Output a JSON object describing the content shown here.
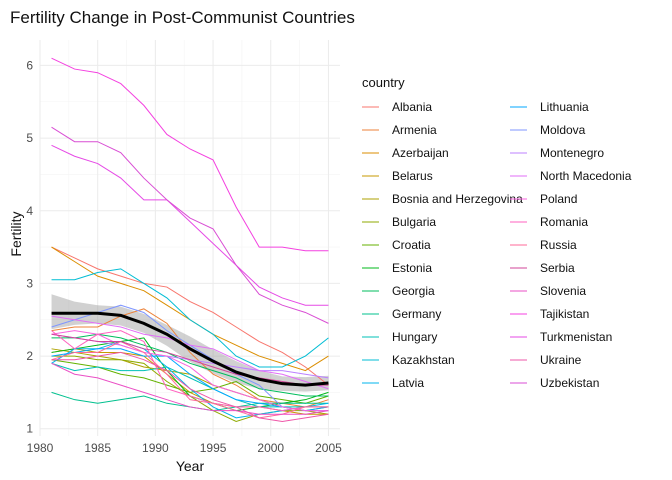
{
  "chart_data": {
    "type": "line",
    "title": "Fertility Change in Post-Communist Countries",
    "xlabel": "Year",
    "ylabel": "Fertility",
    "xlim": [
      1980,
      2006
    ],
    "ylim": [
      0.9,
      6.35
    ],
    "x_ticks": [
      1980,
      1985,
      1990,
      1995,
      2000,
      2005
    ],
    "y_ticks": [
      1,
      2,
      3,
      4,
      5,
      6
    ],
    "grid": true,
    "legend_title": "country",
    "legend_placement": "right",
    "x": [
      1981,
      1983,
      1985,
      1987,
      1989,
      1991,
      1993,
      1995,
      1997,
      1999,
      2001,
      2003,
      2005
    ],
    "series": [
      {
        "name": "Albania",
        "color": "#F8766D",
        "values": [
          3.5,
          3.35,
          3.2,
          3.1,
          3.0,
          2.95,
          2.75,
          2.6,
          2.4,
          2.2,
          2.05,
          1.85,
          1.6
        ]
      },
      {
        "name": "Armenia",
        "color": "#EC8239",
        "values": [
          2.35,
          2.4,
          2.4,
          2.55,
          2.65,
          2.45,
          2.05,
          1.75,
          1.6,
          1.4,
          1.35,
          1.3,
          1.4
        ]
      },
      {
        "name": "Azerbaijan",
        "color": "#DB8E00",
        "values": [
          3.5,
          3.3,
          3.1,
          3.0,
          2.9,
          2.7,
          2.5,
          2.3,
          2.15,
          2.0,
          1.9,
          1.8,
          2.0
        ]
      },
      {
        "name": "Belarus",
        "color": "#C79800",
        "values": [
          2.05,
          2.1,
          2.05,
          2.05,
          2.0,
          1.75,
          1.5,
          1.35,
          1.3,
          1.3,
          1.25,
          1.2,
          1.2
        ]
      },
      {
        "name": "Bosnia and Herzegovina",
        "color": "#AEA200",
        "values": [
          2.1,
          2.05,
          2.0,
          1.95,
          1.85,
          1.8,
          1.75,
          1.6,
          1.5,
          1.4,
          1.3,
          1.25,
          1.2
        ]
      },
      {
        "name": "Bulgaria",
        "color": "#8FAA00",
        "values": [
          2.0,
          2.0,
          1.95,
          1.95,
          1.9,
          1.65,
          1.45,
          1.25,
          1.1,
          1.2,
          1.25,
          1.25,
          1.3
        ]
      },
      {
        "name": "Croatia",
        "color": "#64B200",
        "values": [
          1.95,
          1.9,
          1.85,
          1.75,
          1.7,
          1.6,
          1.5,
          1.55,
          1.65,
          1.45,
          1.4,
          1.35,
          1.45
        ]
      },
      {
        "name": "Estonia",
        "color": "#00B81B",
        "values": [
          2.05,
          2.1,
          2.15,
          2.2,
          2.25,
          1.8,
          1.45,
          1.35,
          1.25,
          1.3,
          1.35,
          1.4,
          1.5
        ]
      },
      {
        "name": "Georgia",
        "color": "#00BD5C",
        "values": [
          2.25,
          2.25,
          2.3,
          2.25,
          2.15,
          2.05,
          1.9,
          1.8,
          1.7,
          1.55,
          1.5,
          1.45,
          1.45
        ]
      },
      {
        "name": "Germany",
        "color": "#00C08E",
        "values": [
          1.5,
          1.4,
          1.35,
          1.4,
          1.45,
          1.35,
          1.3,
          1.25,
          1.3,
          1.35,
          1.35,
          1.35,
          1.35
        ]
      },
      {
        "name": "Hungary",
        "color": "#00C1B7",
        "values": [
          1.9,
          1.8,
          1.85,
          1.8,
          1.8,
          1.85,
          1.7,
          1.55,
          1.4,
          1.3,
          1.3,
          1.3,
          1.3
        ]
      },
      {
        "name": "Kazakhstan",
        "color": "#00BDD4",
        "values": [
          3.05,
          3.05,
          3.15,
          3.2,
          3.0,
          2.8,
          2.5,
          2.3,
          2.0,
          1.85,
          1.85,
          2.0,
          2.25
        ]
      },
      {
        "name": "Latvia",
        "color": "#00B5EE",
        "values": [
          1.9,
          2.1,
          2.1,
          2.2,
          2.1,
          1.85,
          1.55,
          1.3,
          1.15,
          1.2,
          1.25,
          1.3,
          1.35
        ]
      },
      {
        "name": "Lithuania",
        "color": "#00A7FF",
        "values": [
          2.0,
          2.05,
          2.1,
          2.1,
          2.0,
          2.0,
          1.75,
          1.55,
          1.4,
          1.35,
          1.3,
          1.25,
          1.3
        ]
      },
      {
        "name": "Moldova",
        "color": "#7F96FF",
        "values": [
          2.4,
          2.5,
          2.6,
          2.7,
          2.6,
          2.35,
          2.15,
          1.95,
          1.75,
          1.6,
          1.3,
          1.25,
          1.25
        ]
      },
      {
        "name": "Montenegro",
        "color": "#BC81FF",
        "values": [
          2.3,
          2.25,
          2.2,
          2.15,
          2.05,
          2.0,
          1.95,
          1.9,
          1.85,
          1.8,
          1.8,
          1.75,
          1.7
        ]
      },
      {
        "name": "North Macedonia",
        "color": "#E26EF7",
        "values": [
          2.55,
          2.5,
          2.45,
          2.4,
          2.3,
          2.25,
          2.15,
          2.1,
          1.95,
          1.8,
          1.75,
          1.65,
          1.55
        ]
      },
      {
        "name": "Poland",
        "color": "#F863DF",
        "values": [
          2.3,
          2.35,
          2.3,
          2.15,
          2.05,
          2.0,
          1.85,
          1.6,
          1.5,
          1.4,
          1.3,
          1.25,
          1.25
        ]
      },
      {
        "name": "Romania",
        "color": "#FF62BF",
        "values": [
          2.35,
          2.1,
          2.3,
          2.35,
          2.2,
          1.55,
          1.45,
          1.35,
          1.3,
          1.3,
          1.25,
          1.3,
          1.3
        ]
      },
      {
        "name": "Russia",
        "color": "#FF6A9A",
        "values": [
          1.95,
          2.05,
          2.05,
          2.2,
          2.05,
          1.75,
          1.4,
          1.35,
          1.25,
          1.15,
          1.2,
          1.3,
          1.3
        ]
      },
      {
        "name": "Serbia",
        "color": "#D2449A",
        "values": [
          2.3,
          2.25,
          2.2,
          2.2,
          2.1,
          2.05,
          1.95,
          1.85,
          1.75,
          1.7,
          1.65,
          1.6,
          1.6
        ]
      },
      {
        "name": "Slovenia",
        "color": "#EA4FC5",
        "values": [
          1.9,
          1.75,
          1.7,
          1.6,
          1.5,
          1.4,
          1.3,
          1.25,
          1.25,
          1.2,
          1.2,
          1.2,
          1.25
        ]
      },
      {
        "name": "Tajikistan",
        "color": "#F441E0",
        "values": [
          6.1,
          5.95,
          5.9,
          5.75,
          5.45,
          5.05,
          4.85,
          4.7,
          4.05,
          3.5,
          3.5,
          3.45,
          3.45
        ]
      },
      {
        "name": "Turkmenistan",
        "color": "#E64AE6",
        "values": [
          4.9,
          4.75,
          4.65,
          4.45,
          4.15,
          4.15,
          3.85,
          3.55,
          3.25,
          2.95,
          2.8,
          2.7,
          2.7
        ]
      },
      {
        "name": "Ukraine",
        "color": "#EE57A8",
        "values": [
          1.95,
          1.95,
          2.0,
          2.05,
          1.95,
          1.8,
          1.55,
          1.4,
          1.3,
          1.15,
          1.1,
          1.15,
          1.2
        ]
      },
      {
        "name": "Uzbekistan",
        "color": "#D94ED4",
        "values": [
          5.15,
          4.95,
          4.95,
          4.8,
          4.45,
          4.15,
          3.9,
          3.75,
          3.25,
          2.85,
          2.7,
          2.6,
          2.45
        ]
      }
    ],
    "smooth": {
      "color": "#000000",
      "band_color": "#999999",
      "x": [
        1981,
        1983,
        1985,
        1987,
        1989,
        1991,
        1993,
        1995,
        1997,
        1999,
        2001,
        2003,
        2005
      ],
      "fit": [
        2.59,
        2.59,
        2.59,
        2.56,
        2.45,
        2.3,
        2.1,
        1.93,
        1.78,
        1.68,
        1.62,
        1.6,
        1.63
      ],
      "lower": [
        2.37,
        2.43,
        2.45,
        2.42,
        2.32,
        2.14,
        1.92,
        1.76,
        1.63,
        1.55,
        1.52,
        1.51,
        1.53
      ],
      "upper": [
        2.85,
        2.75,
        2.7,
        2.68,
        2.58,
        2.43,
        2.27,
        2.09,
        1.93,
        1.8,
        1.72,
        1.71,
        1.73
      ]
    }
  }
}
